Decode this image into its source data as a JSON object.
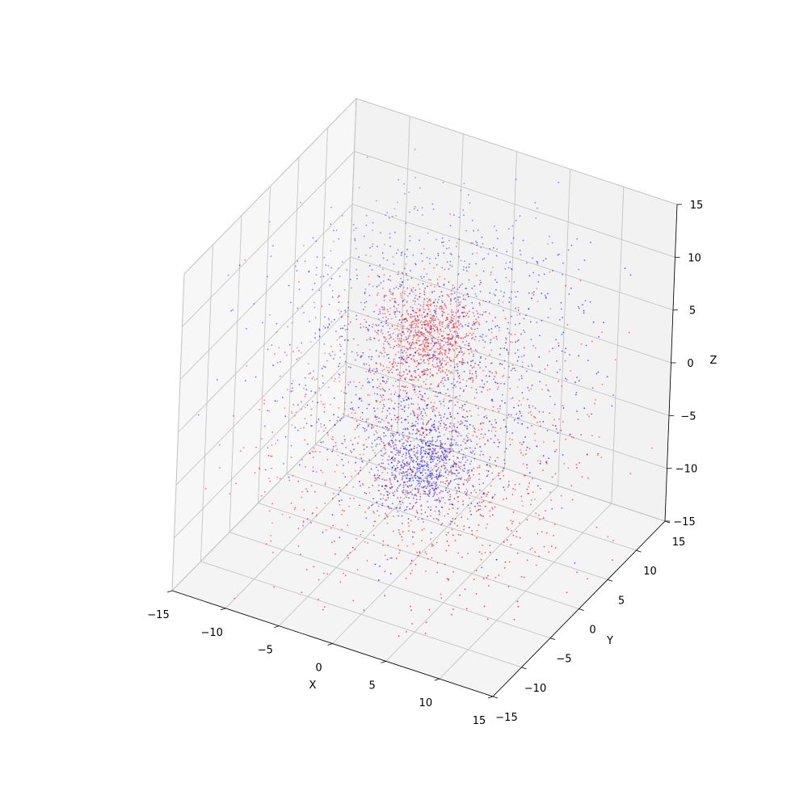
{
  "chart_data": {
    "type": "scatter",
    "projection": "3d",
    "title": "",
    "xlabel": "X",
    "ylabel": "Y",
    "zlabel": "Z",
    "xlim": [
      -15,
      15
    ],
    "ylim": [
      -15,
      15
    ],
    "zlim": [
      -15,
      15
    ],
    "xticks": [
      -15,
      -10,
      -5,
      0,
      5,
      10,
      15
    ],
    "yticks": [
      -15,
      -10,
      -5,
      0,
      5,
      10,
      15
    ],
    "zticks": [
      -15,
      -10,
      -5,
      0,
      5,
      10,
      15
    ],
    "grid": true,
    "colors": {
      "red": "#ff0000",
      "blue": "#0000ff",
      "pane": "#f2f2f2",
      "grid": "#bfbfbf"
    },
    "series": [
      {
        "color": "#ff0000",
        "clusters": [
          {
            "center": [
              0,
              0,
              6
            ],
            "spread": 2.0,
            "count": 750
          },
          {
            "center": [
              0,
              0,
              -6
            ],
            "spread": 7.0,
            "count": 1500
          }
        ]
      },
      {
        "color": "#0000ff",
        "clusters": [
          {
            "center": [
              0,
              0,
              -6
            ],
            "spread": 2.0,
            "count": 750
          },
          {
            "center": [
              0,
              0,
              6
            ],
            "spread": 7.0,
            "count": 1500
          }
        ]
      }
    ],
    "tick_labels": {
      "x": [
        "−15",
        "−10",
        "−5",
        "0",
        "5",
        "10",
        "15"
      ],
      "y": [
        "−15",
        "−10",
        "−5",
        "0",
        "5",
        "10",
        "15"
      ],
      "z": [
        "−15",
        "−10",
        "−5",
        "0",
        "5",
        "10",
        "15"
      ]
    }
  }
}
